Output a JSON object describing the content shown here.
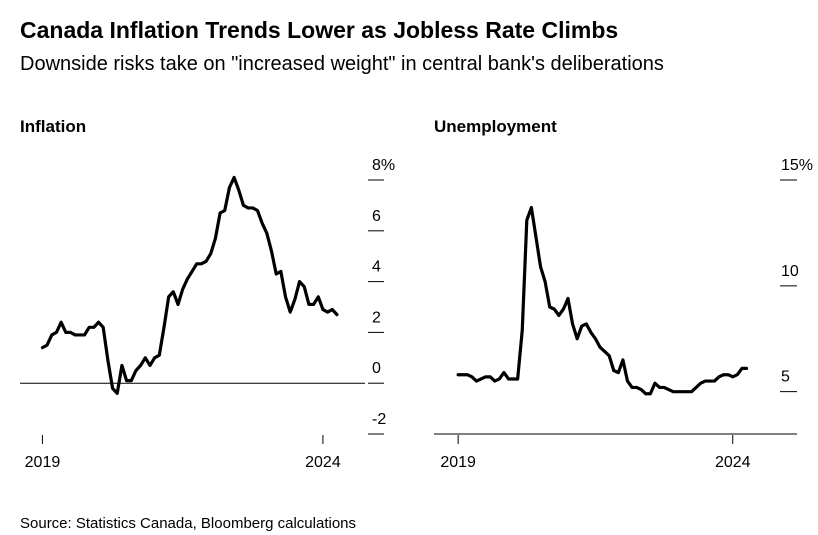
{
  "title": "Canada Inflation Trends Lower as Jobless Rate Climbs",
  "subtitle": "Downside risks take on \"increased weight\" in central bank's deliberations",
  "source": "Source: Statistics Canada, Bloomberg calculations",
  "chart_data": [
    {
      "type": "line",
      "title": "Inflation",
      "x": [
        2019,
        2019.083,
        2019.167,
        2019.25,
        2019.333,
        2019.417,
        2019.5,
        2019.583,
        2019.667,
        2019.75,
        2019.833,
        2019.917,
        2020,
        2020.083,
        2020.167,
        2020.25,
        2020.333,
        2020.417,
        2020.5,
        2020.583,
        2020.667,
        2020.75,
        2020.833,
        2020.917,
        2021,
        2021.083,
        2021.167,
        2021.25,
        2021.333,
        2021.417,
        2021.5,
        2021.583,
        2021.667,
        2021.75,
        2021.833,
        2021.917,
        2022,
        2022.083,
        2022.167,
        2022.25,
        2022.333,
        2022.417,
        2022.5,
        2022.583,
        2022.667,
        2022.75,
        2022.833,
        2022.917,
        2023,
        2023.083,
        2023.167,
        2023.25,
        2023.333,
        2023.417,
        2023.5,
        2023.583,
        2023.667,
        2023.75,
        2023.833,
        2023.917,
        2024,
        2024.083,
        2024.167,
        2024.25
      ],
      "series": [
        {
          "color": "#000000",
          "values": [
            1.4,
            1.5,
            1.9,
            2.0,
            2.4,
            2.0,
            2.0,
            1.9,
            1.9,
            1.9,
            2.2,
            2.2,
            2.4,
            2.2,
            0.9,
            -0.2,
            -0.4,
            0.7,
            0.1,
            0.1,
            0.5,
            0.7,
            1.0,
            0.7,
            1.0,
            1.1,
            2.2,
            3.4,
            3.6,
            3.1,
            3.7,
            4.1,
            4.4,
            4.7,
            4.7,
            4.8,
            5.1,
            5.7,
            6.7,
            6.8,
            7.7,
            8.1,
            7.6,
            7.0,
            6.9,
            6.9,
            6.8,
            6.3,
            5.9,
            5.2,
            4.3,
            4.4,
            3.4,
            2.8,
            3.3,
            4.0,
            3.8,
            3.1,
            3.1,
            3.4,
            2.9,
            2.8,
            2.9,
            2.7
          ]
        }
      ],
      "xlim": [
        2018.6,
        2024.75
      ],
      "xticks": [
        2019,
        2024
      ],
      "ylim": [
        -2,
        8
      ],
      "yticks": [
        -2,
        0,
        2,
        4,
        6,
        {
          "value": 8,
          "label": "8%"
        }
      ],
      "zero_line": true
    },
    {
      "type": "line",
      "title": "Unemployment",
      "x": [
        2019,
        2019.083,
        2019.167,
        2019.25,
        2019.333,
        2019.417,
        2019.5,
        2019.583,
        2019.667,
        2019.75,
        2019.833,
        2019.917,
        2020,
        2020.083,
        2020.167,
        2020.25,
        2020.333,
        2020.417,
        2020.5,
        2020.583,
        2020.667,
        2020.75,
        2020.833,
        2020.917,
        2021,
        2021.083,
        2021.167,
        2021.25,
        2021.333,
        2021.417,
        2021.5,
        2021.583,
        2021.667,
        2021.75,
        2021.833,
        2021.917,
        2022,
        2022.083,
        2022.167,
        2022.25,
        2022.333,
        2022.417,
        2022.5,
        2022.583,
        2022.667,
        2022.75,
        2022.833,
        2022.917,
        2023,
        2023.083,
        2023.167,
        2023.25,
        2023.333,
        2023.417,
        2023.5,
        2023.583,
        2023.667,
        2023.75,
        2023.833,
        2023.917,
        2024,
        2024.083,
        2024.167,
        2024.25
      ],
      "series": [
        {
          "color": "#000000",
          "values": [
            5.8,
            5.8,
            5.8,
            5.7,
            5.5,
            5.6,
            5.7,
            5.7,
            5.5,
            5.6,
            5.9,
            5.6,
            5.6,
            5.6,
            7.9,
            13.1,
            13.7,
            12.3,
            10.9,
            10.2,
            9.0,
            8.9,
            8.6,
            8.9,
            9.4,
            8.2,
            7.5,
            8.1,
            8.2,
            7.8,
            7.5,
            7.1,
            6.9,
            6.7,
            6.0,
            5.9,
            6.5,
            5.5,
            5.2,
            5.2,
            5.1,
            4.9,
            4.9,
            5.4,
            5.2,
            5.2,
            5.1,
            5.0,
            5.0,
            5.0,
            5.0,
            5.0,
            5.2,
            5.4,
            5.5,
            5.5,
            5.5,
            5.7,
            5.8,
            5.8,
            5.7,
            5.8,
            6.1,
            6.1
          ]
        }
      ],
      "xlim": [
        2018.56,
        2025.17
      ],
      "xticks": [
        2019,
        2024
      ],
      "ylim": [
        3,
        15
      ],
      "yticks": [
        5,
        10,
        {
          "value": 15,
          "label": "15%"
        }
      ],
      "x_axis_line": true
    }
  ]
}
